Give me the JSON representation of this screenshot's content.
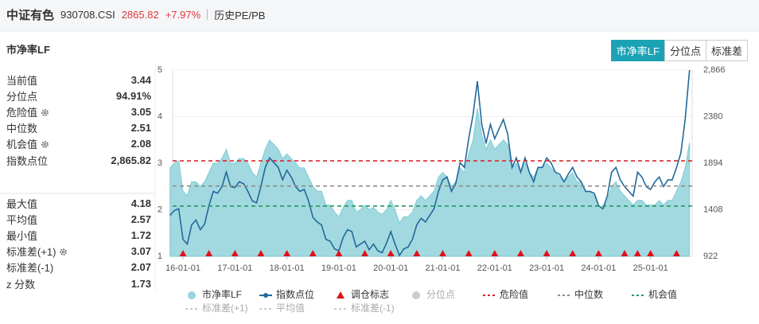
{
  "header": {
    "name": "中证有色",
    "code": "930708.CSI",
    "price": "2865.82",
    "change": "+7.97%",
    "link": "历史PE/PB"
  },
  "panel_title": "市净率LF",
  "tabs": [
    "市净率LF",
    "分位点",
    "标准差"
  ],
  "stats": [
    [
      [
        "当前值",
        "3.44"
      ],
      [
        "分位点",
        "94.91%"
      ],
      [
        "危险值",
        "3.05"
      ],
      [
        "中位数",
        "2.51"
      ],
      [
        "机会值",
        "2.08"
      ],
      [
        "指数点位",
        "2,865.82"
      ]
    ],
    [
      [
        "最大值",
        "4.18"
      ],
      [
        "平均值",
        "2.57"
      ],
      [
        "最小值",
        "1.72"
      ],
      [
        "标准差(+1)",
        "3.07"
      ],
      [
        "标准差(-1)",
        "2.07"
      ],
      [
        "z 分数",
        "1.73"
      ]
    ]
  ],
  "chart_data": {
    "type": "area-line",
    "x": [
      "15-10-01",
      "15-11-01",
      "15-12-01",
      "16-01-01",
      "16-02-01",
      "16-03-01",
      "16-04-01",
      "16-05-01",
      "16-06-01",
      "16-07-01",
      "16-08-01",
      "16-09-01",
      "16-10-01",
      "16-11-01",
      "16-12-01",
      "17-01-01",
      "17-02-01",
      "17-03-01",
      "17-04-01",
      "17-05-01",
      "17-06-01",
      "17-07-01",
      "17-08-01",
      "17-09-01",
      "17-10-01",
      "17-11-01",
      "17-12-01",
      "18-01-01",
      "18-02-01",
      "18-03-01",
      "18-04-01",
      "18-05-01",
      "18-06-01",
      "18-07-01",
      "18-08-01",
      "18-09-01",
      "18-10-01",
      "18-11-01",
      "18-12-01",
      "19-01-01",
      "19-02-01",
      "19-03-01",
      "19-04-01",
      "19-05-01",
      "19-06-01",
      "19-07-01",
      "19-08-01",
      "19-09-01",
      "19-10-01",
      "19-11-01",
      "19-12-01",
      "20-01-01",
      "20-02-01",
      "20-03-01",
      "20-04-01",
      "20-05-01",
      "20-06-01",
      "20-07-01",
      "20-08-01",
      "20-09-01",
      "20-10-01",
      "20-11-01",
      "20-12-01",
      "21-01-01",
      "21-02-01",
      "21-03-01",
      "21-04-01",
      "21-05-01",
      "21-06-01",
      "21-07-01",
      "21-08-01",
      "21-09-01",
      "21-10-01",
      "21-11-01",
      "21-12-01",
      "22-01-01",
      "22-02-01",
      "22-03-01",
      "22-04-01",
      "22-05-01",
      "22-06-01",
      "22-07-01",
      "22-08-01",
      "22-09-01",
      "22-10-01",
      "22-11-01",
      "22-12-01",
      "23-01-01",
      "23-02-01",
      "23-03-01",
      "23-04-01",
      "23-05-01",
      "23-06-01",
      "23-07-01",
      "23-08-01",
      "23-09-01",
      "23-10-01",
      "23-11-01",
      "23-12-01",
      "24-01-01",
      "24-02-01",
      "24-03-01",
      "24-04-01",
      "24-05-01",
      "24-06-01",
      "24-07-01",
      "24-08-01",
      "24-09-01",
      "24-10-01",
      "24-11-01",
      "24-12-01",
      "25-01-01",
      "25-02-01",
      "25-03-01",
      "25-04-01",
      "25-05-01",
      "25-06-01",
      "25-07-01",
      "25-08-01",
      "25-09-01",
      "25-10-01"
    ],
    "series": [
      {
        "name": "市净率LF",
        "color": "#98d5dd",
        "values": [
          2.9,
          3.0,
          3.05,
          2.4,
          2.3,
          2.6,
          2.6,
          2.5,
          2.6,
          2.8,
          3.0,
          3.0,
          3.1,
          3.3,
          3.0,
          3.0,
          3.1,
          3.1,
          3.0,
          2.8,
          2.7,
          3.0,
          3.3,
          3.5,
          3.4,
          3.3,
          3.1,
          3.2,
          3.1,
          3.0,
          2.9,
          2.9,
          2.7,
          2.5,
          2.4,
          2.4,
          2.1,
          2.1,
          1.95,
          1.85,
          2.05,
          2.2,
          2.2,
          1.95,
          2.0,
          2.1,
          2.0,
          2.05,
          1.95,
          1.9,
          2.0,
          2.2,
          2.0,
          1.72,
          1.85,
          1.85,
          1.95,
          2.2,
          2.3,
          2.2,
          2.3,
          2.4,
          2.7,
          2.8,
          2.7,
          2.5,
          2.6,
          2.9,
          2.8,
          3.2,
          3.5,
          4.18,
          3.6,
          3.3,
          3.5,
          3.3,
          3.4,
          3.5,
          3.4,
          2.9,
          3.0,
          2.8,
          3.0,
          2.8,
          2.7,
          2.9,
          2.9,
          3.0,
          2.9,
          2.8,
          2.7,
          2.6,
          2.7,
          2.8,
          2.6,
          2.6,
          2.4,
          2.4,
          2.3,
          2.1,
          2.0,
          2.2,
          2.5,
          2.6,
          2.4,
          2.3,
          2.2,
          2.1,
          2.2,
          2.2,
          2.1,
          2.1,
          2.1,
          2.2,
          2.1,
          2.2,
          2.2,
          2.4,
          2.6,
          2.9,
          3.44
        ]
      },
      {
        "name": "指数点位",
        "color": "#22699a",
        "axis": "y2",
        "values": [
          1350,
          1400,
          1420,
          1100,
          1050,
          1250,
          1300,
          1200,
          1260,
          1450,
          1600,
          1580,
          1650,
          1800,
          1650,
          1640,
          1700,
          1680,
          1600,
          1500,
          1480,
          1650,
          1850,
          1950,
          1900,
          1850,
          1720,
          1820,
          1750,
          1650,
          1600,
          1620,
          1500,
          1330,
          1280,
          1250,
          1100,
          1080,
          1000,
          980,
          1120,
          1200,
          1180,
          1020,
          1050,
          1080,
          990,
          1050,
          980,
          960,
          1060,
          1180,
          1050,
          930,
          1000,
          1020,
          1100,
          1250,
          1320,
          1280,
          1350,
          1420,
          1600,
          1720,
          1750,
          1600,
          1680,
          1900,
          1850,
          2150,
          2400,
          2750,
          2300,
          2100,
          2300,
          2150,
          2250,
          2350,
          2200,
          1850,
          1950,
          1800,
          1950,
          1800,
          1700,
          1850,
          1850,
          1950,
          1900,
          1800,
          1780,
          1700,
          1780,
          1850,
          1750,
          1700,
          1600,
          1600,
          1580,
          1450,
          1420,
          1550,
          1800,
          1850,
          1720,
          1650,
          1600,
          1550,
          1800,
          1750,
          1650,
          1620,
          1700,
          1750,
          1650,
          1720,
          1720,
          1850,
          2000,
          2350,
          2865.82
        ]
      }
    ],
    "markers": {
      "name": "调仓标志",
      "color": "#e0101a",
      "x": [
        "16-01-01",
        "16-07-01",
        "17-01-01",
        "17-07-01",
        "18-01-01",
        "18-07-01",
        "19-01-01",
        "19-07-01",
        "20-01-01",
        "20-07-01",
        "21-01-01",
        "21-07-01",
        "22-01-01",
        "22-07-01",
        "23-01-01",
        "23-07-01",
        "24-01-01",
        "24-07-01",
        "24-10-01",
        "25-01-01",
        "25-07-01"
      ]
    },
    "lines": [
      {
        "name": "危险值",
        "value": 3.05,
        "color": "#d9262b"
      },
      {
        "name": "中位数",
        "value": 2.51,
        "color": "#8c8c8c"
      },
      {
        "name": "机会值",
        "value": 2.08,
        "color": "#1f9a5c"
      }
    ],
    "inactive_legend": [
      "分位点",
      "标准差(+1)",
      "平均值",
      "标准差(-1)"
    ],
    "ylim": [
      1,
      5
    ],
    "yticks": [
      1,
      2,
      3,
      4,
      5
    ],
    "y2lim": [
      922,
      2866
    ],
    "y2ticks": [
      922,
      1408,
      1894,
      2380,
      {
        "value": 2866,
        "label": "2,866"
      }
    ],
    "xticks": [
      "16-01-01",
      "17-01-01",
      "18-01-01",
      "19-01-01",
      "20-01-01",
      "21-01-01",
      "22-01-01",
      "23-01-01",
      "24-01-01",
      "25-01-01"
    ],
    "grid": true
  }
}
